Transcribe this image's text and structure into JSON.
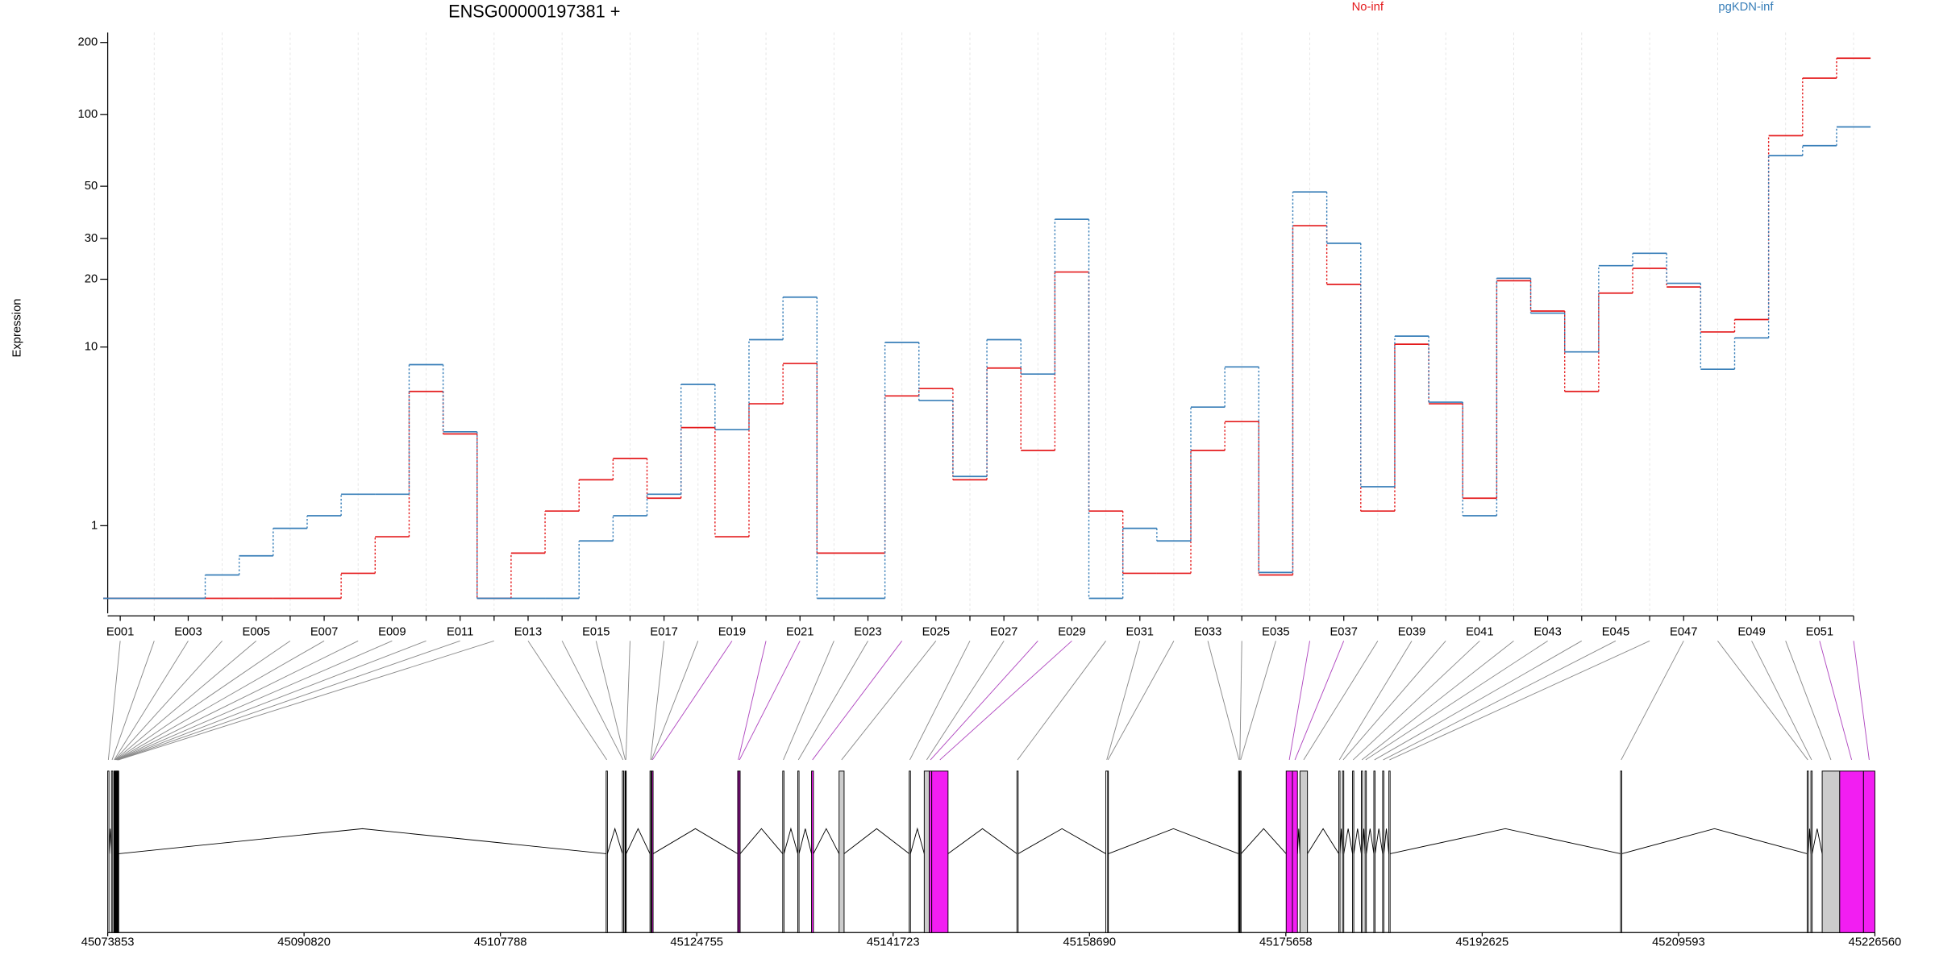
{
  "chart_data": {
    "type": "line",
    "title": "ENSG00000197381 +",
    "ylabel": "Expression",
    "yscale": "log1p",
    "ylim": [
      0,
      220
    ],
    "yticks": [
      1,
      10,
      20,
      30,
      50,
      100,
      200
    ],
    "grid": true,
    "legend": "top",
    "categories": [
      "E001",
      null,
      "E003",
      null,
      "E005",
      null,
      "E007",
      null,
      "E009",
      null,
      "E011",
      null,
      "E013",
      null,
      "E015",
      null,
      "E017",
      null,
      "E019",
      null,
      "E021",
      null,
      "E023",
      null,
      "E025",
      null,
      "E027",
      null,
      "E029",
      null,
      "E031",
      null,
      "E033",
      null,
      "E035",
      null,
      "E037",
      null,
      "E039",
      null,
      "E041",
      null,
      "E043",
      null,
      "E045",
      null,
      "E047",
      null,
      "E049",
      null,
      "E051",
      null
    ],
    "series": [
      {
        "name": "No-inf",
        "color": "#e41a1c",
        "values": [
          0,
          0,
          0,
          0,
          0,
          0,
          0,
          0.27,
          0.8,
          6.2,
          3.8,
          0,
          0.54,
          1.3,
          2.1,
          2.8,
          1.6,
          4.1,
          0.8,
          5.4,
          8.4,
          0.54,
          0.54,
          5.9,
          6.4,
          2.1,
          8.0,
          3.1,
          21.5,
          1.3,
          0.27,
          0.27,
          3.1,
          4.4,
          0.25,
          34,
          19,
          1.3,
          10.3,
          5.4,
          1.6,
          19.7,
          14.5,
          6.2,
          17.4,
          22.3,
          18.5,
          11.7,
          13.3,
          81.6,
          142,
          172
        ]
      },
      {
        "name": "pgKDN-inf",
        "color": "#377eb8",
        "values": [
          0,
          0,
          0,
          0.25,
          0.5,
          0.95,
          1.2,
          1.7,
          1.7,
          8.3,
          3.9,
          0,
          0,
          0,
          0.73,
          1.2,
          1.7,
          6.7,
          4.0,
          10.8,
          16.7,
          0,
          0,
          10.5,
          5.6,
          2.2,
          10.8,
          7.5,
          36.2,
          0,
          0.95,
          0.73,
          5.2,
          8.1,
          0.28,
          47.3,
          28.6,
          1.9,
          11.2,
          5.5,
          1.2,
          20.2,
          14.2,
          9.5,
          22.9,
          25.9,
          19.2,
          7.9,
          11.0,
          67.3,
          74.1,
          88.8
        ]
      }
    ],
    "gene_model": {
      "xlim": [
        45073853,
        45226560
      ],
      "xticks": [
        45073853,
        45090820,
        45107788,
        45124755,
        45141723,
        45158690,
        45175658,
        45192625,
        45209593,
        45226560
      ],
      "exons": [
        {
          "start": 45073853,
          "end": 45073961,
          "fill": "#ffffff"
        },
        {
          "start": 45074178,
          "end": 45074286,
          "fill": "#ffffff"
        },
        {
          "start": 45074394,
          "end": 45074448,
          "fill": "#ffffff"
        },
        {
          "start": 45074448,
          "end": 45074502,
          "fill": "#ffffff"
        },
        {
          "start": 45074502,
          "end": 45074556,
          "fill": "#ffffff"
        },
        {
          "start": 45074556,
          "end": 45074610,
          "fill": "#ffffff"
        },
        {
          "start": 45074610,
          "end": 45074642,
          "fill": "#ffffff"
        },
        {
          "start": 45074642,
          "end": 45074675,
          "fill": "#ffffff"
        },
        {
          "start": 45074675,
          "end": 45074708,
          "fill": "#ffffff"
        },
        {
          "start": 45074708,
          "end": 45074740,
          "fill": "#ffffff"
        },
        {
          "start": 45074740,
          "end": 45074773,
          "fill": "#ffffff"
        },
        {
          "start": 45074773,
          "end": 45074805,
          "fill": "#ffffff"
        },
        {
          "start": 45116925,
          "end": 45117033,
          "fill": "#ffffff"
        },
        {
          "start": 45118331,
          "end": 45118439,
          "fill": "#ffffff"
        },
        {
          "start": 45118548,
          "end": 45118602,
          "fill": "#ffffff"
        },
        {
          "start": 45118602,
          "end": 45118656,
          "fill": "#ffffff"
        },
        {
          "start": 45120712,
          "end": 45120820,
          "fill": "#ffffff"
        },
        {
          "start": 45120820,
          "end": 45120874,
          "fill": "#ffffff"
        },
        {
          "start": 45120874,
          "end": 45120982,
          "fill": "#f21ef2"
        },
        {
          "start": 45128288,
          "end": 45128396,
          "fill": "#f21ef2"
        },
        {
          "start": 45128396,
          "end": 45128504,
          "fill": "#f21ef2"
        },
        {
          "start": 45132184,
          "end": 45132292,
          "fill": "#ffffff"
        },
        {
          "start": 45133484,
          "end": 45133592,
          "fill": "#ffffff"
        },
        {
          "start": 45134673,
          "end": 45134835,
          "fill": "#f21ef2"
        },
        {
          "start": 45137053,
          "end": 45137486,
          "fill": "#cccccc"
        },
        {
          "start": 45143114,
          "end": 45143222,
          "fill": "#ffffff"
        },
        {
          "start": 45144412,
          "end": 45144845,
          "fill": "#cccccc"
        },
        {
          "start": 45144845,
          "end": 45145061,
          "fill": "#f21ef2"
        },
        {
          "start": 45145061,
          "end": 45146469,
          "fill": "#f21ef2"
        },
        {
          "start": 45152421,
          "end": 45152529,
          "fill": "#ffffff"
        },
        {
          "start": 45160104,
          "end": 45160266,
          "fill": "#ffffff"
        },
        {
          "start": 45160266,
          "end": 45160320,
          "fill": "#ffffff"
        },
        {
          "start": 45171576,
          "end": 45171652,
          "fill": "#ffffff"
        },
        {
          "start": 45171652,
          "end": 45171717,
          "fill": "#ffffff"
        },
        {
          "start": 45171717,
          "end": 45171793,
          "fill": "#ffffff"
        },
        {
          "start": 45175688,
          "end": 45176229,
          "fill": "#f21ef2"
        },
        {
          "start": 45176229,
          "end": 45176662,
          "fill": "#f21ef2"
        },
        {
          "start": 45176878,
          "end": 45177527,
          "fill": "#cccccc"
        },
        {
          "start": 45180233,
          "end": 45180341,
          "fill": "#ffffff"
        },
        {
          "start": 45180557,
          "end": 45180665,
          "fill": "#ffffff"
        },
        {
          "start": 45181423,
          "end": 45181531,
          "fill": "#ffffff"
        },
        {
          "start": 45182181,
          "end": 45182289,
          "fill": "#ffffff"
        },
        {
          "start": 45182506,
          "end": 45182614,
          "fill": "#ffffff"
        },
        {
          "start": 45183263,
          "end": 45183371,
          "fill": "#ffffff"
        },
        {
          "start": 45184021,
          "end": 45184129,
          "fill": "#ffffff"
        },
        {
          "start": 45184562,
          "end": 45184670,
          "fill": "#ffffff"
        },
        {
          "start": 45204583,
          "end": 45204691,
          "fill": "#ffffff"
        },
        {
          "start": 45220708,
          "end": 45220816,
          "fill": "#ffffff"
        },
        {
          "start": 45221032,
          "end": 45221140,
          "fill": "#ffffff"
        },
        {
          "start": 45222006,
          "end": 45223521,
          "fill": "#cccccc"
        },
        {
          "start": 45223521,
          "end": 45225577,
          "fill": "#f21ef2"
        },
        {
          "start": 45225577,
          "end": 45226560,
          "fill": "#f21ef2"
        }
      ]
    }
  }
}
